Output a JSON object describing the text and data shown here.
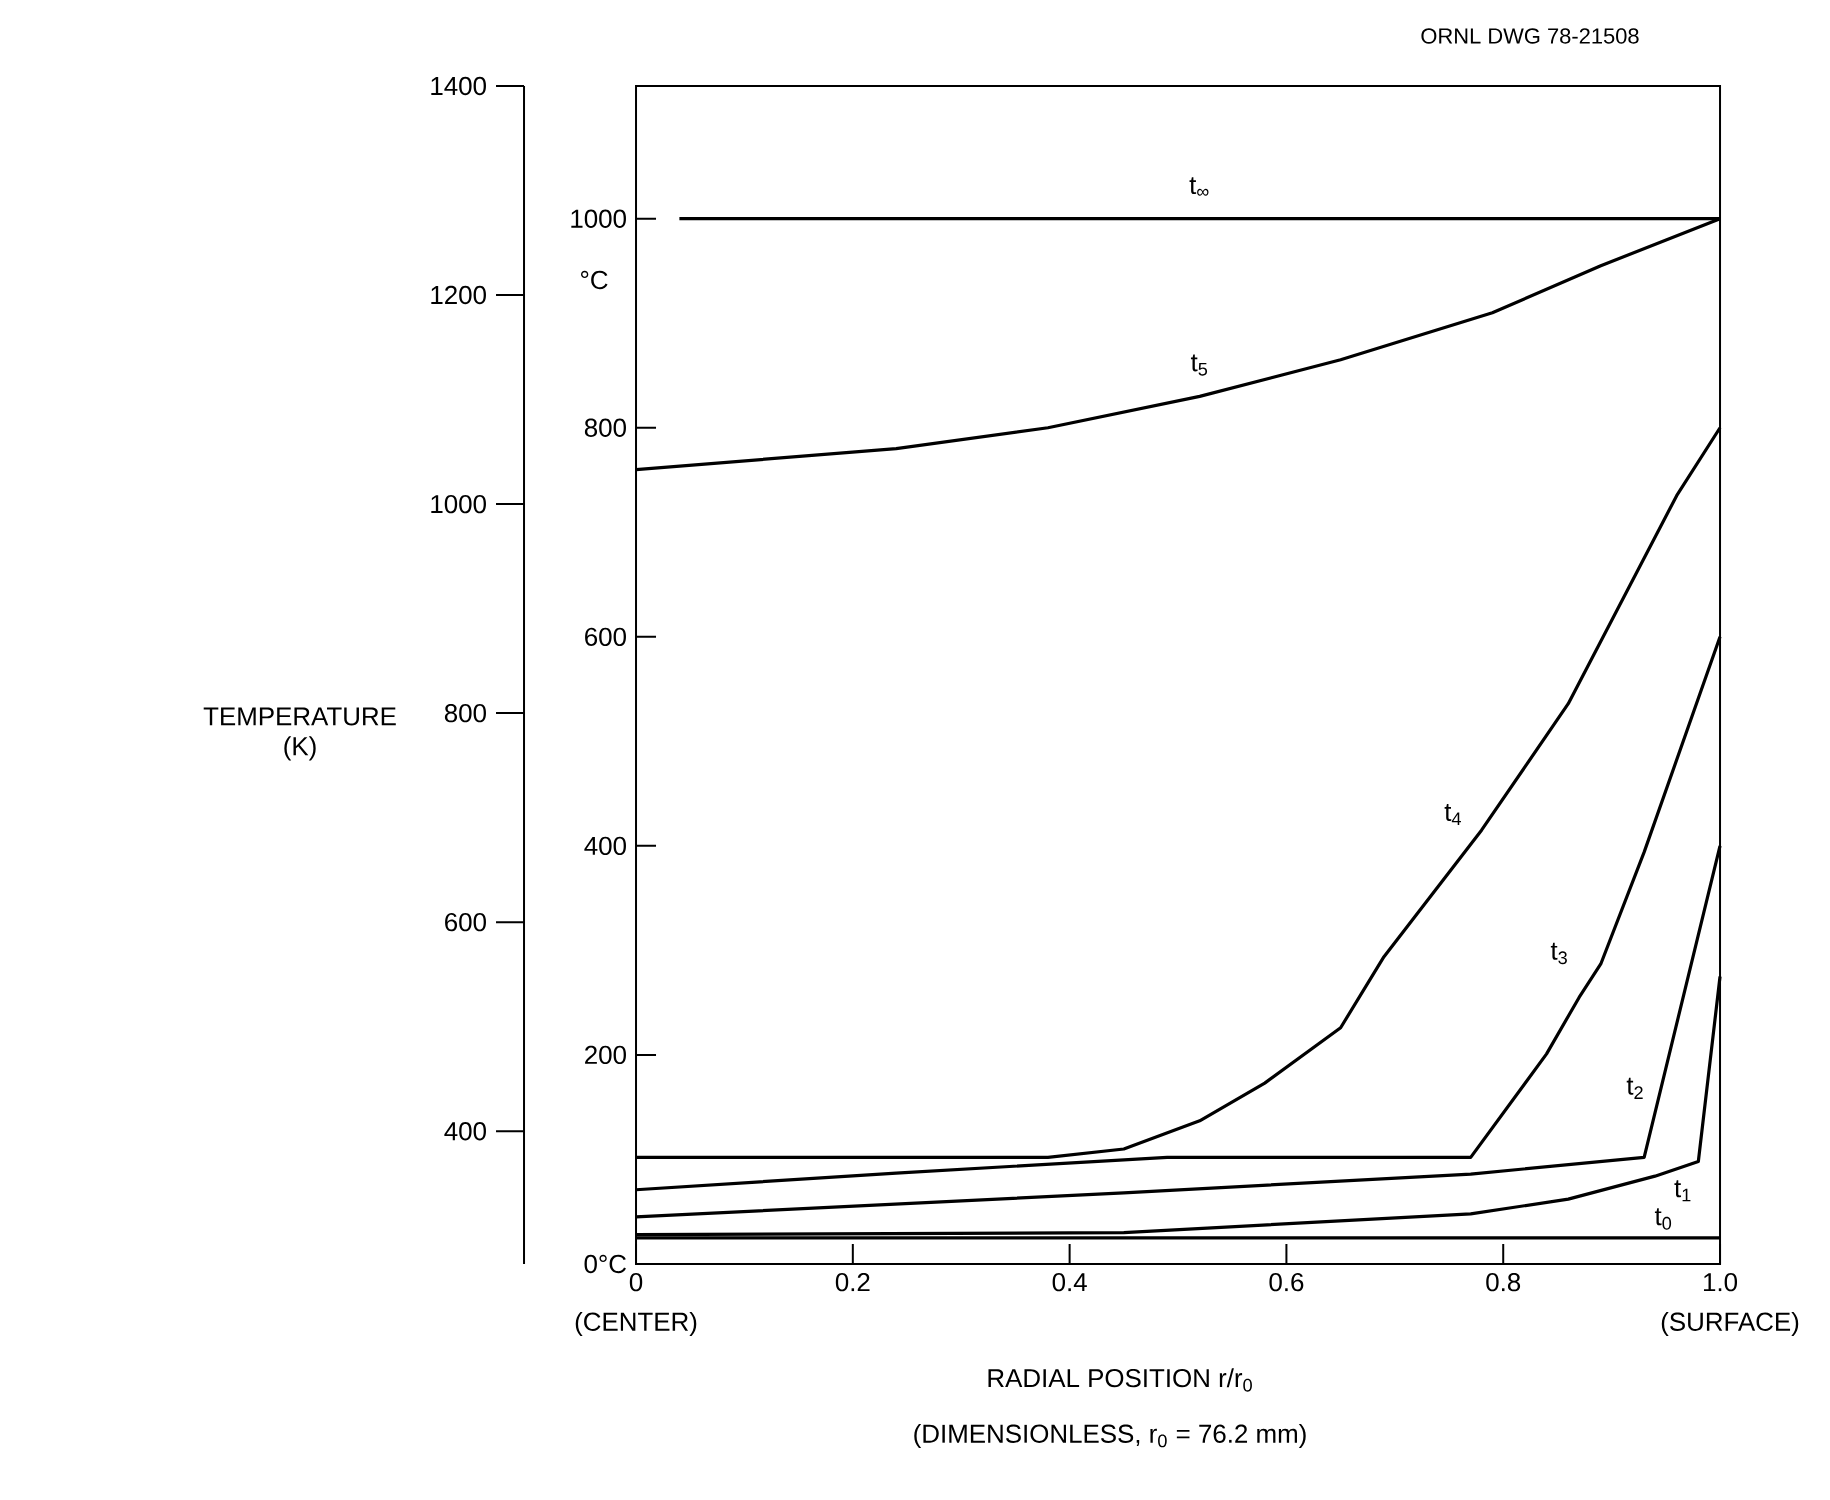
{
  "chart_data": {
    "type": "line",
    "xlabel": "RADIAL POSITION  r/r$_{0}$",
    "ylabel": "°C",
    "y2label": "TEMPERATURE (K)",
    "xlim": [
      0,
      1
    ],
    "xticks": [
      0,
      0.2,
      0.4,
      0.6,
      0.8,
      {
        "value": 1,
        "label": "1.0"
      }
    ],
    "ylim": [
      0,
      1127
    ],
    "yticks": [
      {
        "value": 0,
        "label": "0°C"
      },
      200,
      400,
      600,
      800,
      1000
    ],
    "y2lim": [
      273,
      1400
    ],
    "y2ticks": [
      400,
      600,
      800,
      1000,
      1200,
      1400
    ],
    "series": [
      {
        "name": "t$_{0}$",
        "color": "#000000",
        "x": [
          0,
          1
        ],
        "values": [
          25,
          25
        ]
      },
      {
        "name": "t$_{1}$",
        "color": "#000000",
        "x": [
          0,
          0.45,
          0.77,
          0.86,
          0.94,
          0.98,
          1.0
        ],
        "values": [
          28,
          30,
          48,
          62,
          84,
          98,
          275
        ]
      },
      {
        "name": "t$_{2}$",
        "color": "#000000",
        "x": [
          0,
          0.45,
          0.77,
          0.93,
          1.0
        ],
        "values": [
          45,
          68,
          86,
          102,
          400
        ]
      },
      {
        "name": "t$_{3}$",
        "color": "#000000",
        "x": [
          0,
          0.24,
          0.49,
          0.77,
          0.84,
          0.87,
          0.89,
          0.93,
          1.0
        ],
        "values": [
          71,
          87,
          102,
          102,
          201,
          255,
          287,
          394,
          600
        ]
      },
      {
        "name": "t$_{4}$",
        "color": "#000000",
        "x": [
          0,
          0.38,
          0.45,
          0.52,
          0.58,
          0.65,
          0.69,
          0.78,
          0.86,
          0.96,
          1.0
        ],
        "values": [
          102,
          102,
          110,
          137,
          173,
          226,
          294,
          415,
          536,
          735,
          800
        ]
      },
      {
        "name": "t$_{5}$",
        "color": "#000000",
        "x": [
          0,
          0.24,
          0.38,
          0.52,
          0.65,
          0.79,
          0.89,
          1.0
        ],
        "values": [
          760,
          780,
          800,
          830,
          865,
          910,
          955,
          1000
        ]
      },
      {
        "name": "t$_{∞}$",
        "color": "#000000",
        "x": [
          0.04,
          1.0
        ],
        "values": [
          1000,
          1000
        ]
      }
    ],
    "annotations": [
      "ORNL DWG 78-21508",
      "(CENTER)",
      "(SURFACE)",
      "(DIMENSIONLESS, r$_{0}$ = 76.2 mm)"
    ]
  }
}
